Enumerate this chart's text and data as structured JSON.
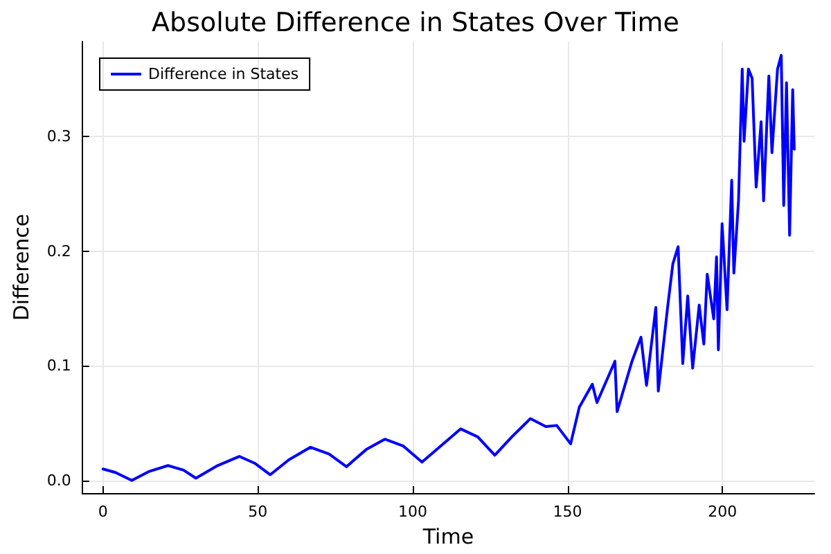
{
  "chart_data": {
    "type": "line",
    "title": "Absolute Difference in States Over Time",
    "xlabel": "Time",
    "ylabel": "Difference",
    "x": [
      0,
      4,
      9.3,
      15,
      21,
      26,
      30,
      37,
      44,
      49,
      54,
      60,
      67,
      73,
      78.6,
      85,
      91,
      97,
      103,
      109,
      115.5,
      121,
      126.5,
      132,
      138,
      143,
      146.5,
      151,
      153.8,
      158,
      159.5,
      165.3,
      166,
      170.8,
      173.7,
      175.5,
      178.5,
      179.3,
      182.3,
      184,
      185.7,
      187.2,
      188.8,
      190.4,
      192.5,
      194,
      195.1,
      197.2,
      198.1,
      198.7,
      199.9,
      201.5,
      203,
      203.7,
      205.2,
      206.4,
      207,
      208.4,
      209.6,
      210.9,
      212.5,
      213.3,
      215,
      216,
      217.8,
      219,
      219.8,
      220.7,
      221.7,
      222.7,
      223.2
    ],
    "series": [
      {
        "name": "Difference in States",
        "color": "#0000ff",
        "values": [
          0.01,
          0.007,
          0.0,
          0.008,
          0.013,
          0.009,
          0.002,
          0.013,
          0.021,
          0.015,
          0.005,
          0.018,
          0.029,
          0.023,
          0.012,
          0.027,
          0.036,
          0.03,
          0.016,
          0.03,
          0.045,
          0.038,
          0.022,
          0.038,
          0.054,
          0.047,
          0.048,
          0.032,
          0.064,
          0.084,
          0.068,
          0.104,
          0.06,
          0.104,
          0.125,
          0.083,
          0.151,
          0.078,
          0.151,
          0.189,
          0.204,
          0.102,
          0.161,
          0.098,
          0.153,
          0.119,
          0.18,
          0.141,
          0.195,
          0.114,
          0.224,
          0.149,
          0.262,
          0.181,
          0.244,
          0.359,
          0.296,
          0.359,
          0.351,
          0.256,
          0.313,
          0.244,
          0.353,
          0.286,
          0.359,
          0.371,
          0.24,
          0.347,
          0.214,
          0.341,
          0.289
        ]
      }
    ],
    "xlim": [
      -6.7,
      229.7
    ],
    "xticks": [
      0,
      50,
      100,
      150,
      200
    ],
    "ylim": [
      -0.011,
      0.383
    ],
    "yticks": [
      {
        "value": 0,
        "label": "0.0"
      },
      {
        "value": 0.1,
        "label": "0.1"
      },
      {
        "value": 0.2,
        "label": "0.2"
      },
      {
        "value": 0.3,
        "label": "0.3"
      }
    ],
    "grid": true,
    "legend": "top left",
    "marker": "none",
    "line_style": "solid"
  }
}
